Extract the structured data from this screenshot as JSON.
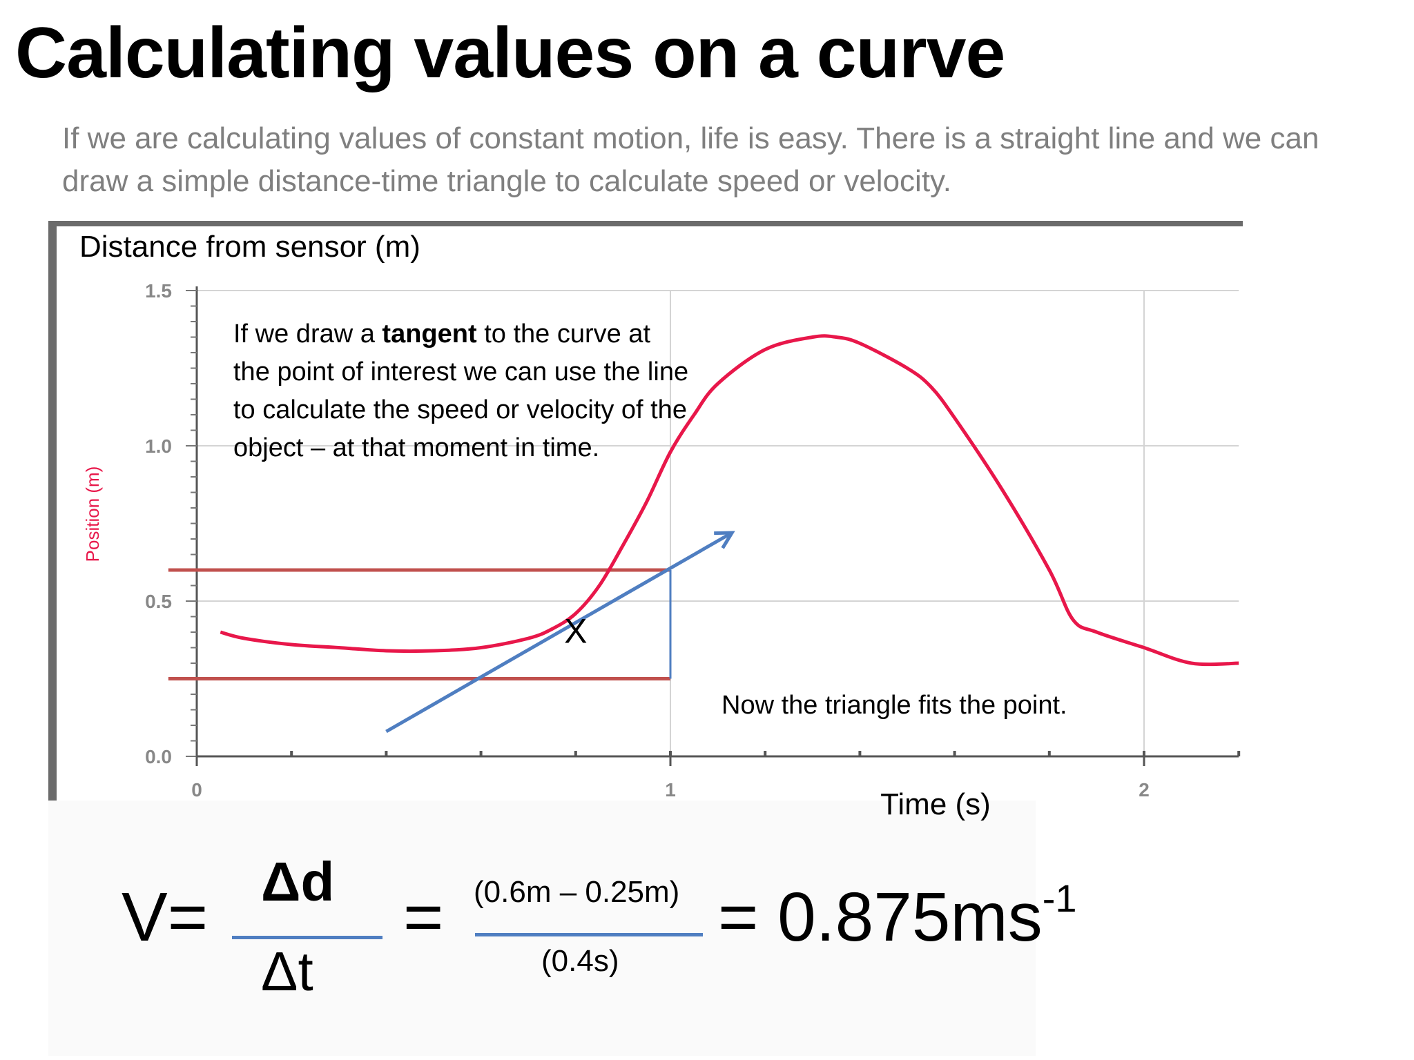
{
  "slide": {
    "title": "Calculating values on a curve",
    "intro": "If we are calculating values of constant motion, life is easy. There is a straight line and we can draw a simple distance-time triangle to calculate speed or velocity."
  },
  "chart_data": {
    "type": "line",
    "ylabel": "Distance from sensor (m)",
    "ylabel_inner": "Position (m)",
    "xlabel": "Time (s)",
    "xlim": [
      0,
      2.2
    ],
    "ylim": [
      0,
      1.5
    ],
    "x_ticks": [
      0,
      1,
      2
    ],
    "y_ticks": [
      0.0,
      0.5,
      1.0,
      1.5
    ],
    "x_tick_labels": [
      "0",
      "1",
      "2"
    ],
    "y_tick_labels": [
      "0.0",
      "0.5",
      "1.0",
      "1.5"
    ],
    "grid": true,
    "series": [
      {
        "color": "#e8174a",
        "x": [
          0.05,
          0.1,
          0.2,
          0.3,
          0.4,
          0.5,
          0.6,
          0.7,
          0.75,
          0.8,
          0.85,
          0.9,
          0.95,
          1.0,
          1.05,
          1.1,
          1.2,
          1.3,
          1.35,
          1.4,
          1.5,
          1.55,
          1.6,
          1.7,
          1.8,
          1.85,
          1.9,
          2.0,
          2.1,
          2.2
        ],
        "y": [
          0.4,
          0.38,
          0.36,
          0.35,
          0.34,
          0.34,
          0.35,
          0.38,
          0.41,
          0.46,
          0.55,
          0.68,
          0.82,
          0.98,
          1.1,
          1.2,
          1.31,
          1.35,
          1.35,
          1.33,
          1.25,
          1.19,
          1.09,
          0.86,
          0.6,
          0.44,
          0.4,
          0.35,
          0.3,
          0.3
        ]
      }
    ],
    "tangent": {
      "x1": 0.4,
      "y1": 0.08,
      "x2": 1.13,
      "y2": 0.72,
      "color": "#4f7ec1"
    },
    "triangle": {
      "x_left": 0.6,
      "x_right": 1.0,
      "y_low": 0.25,
      "y_high": 0.6,
      "line_start_x": -0.06,
      "color": "#c0504d"
    },
    "point_marker": {
      "x": 0.8,
      "y": 0.41,
      "label": "X"
    },
    "annotations": {
      "tangent_note_before": "If we draw a ",
      "tangent_note_bold": "tangent",
      "tangent_note_after_lines": [
        " to the curve at",
        "the point of interest we can use the line",
        "to calculate the speed or velocity of the",
        "object – at that moment in time."
      ],
      "fit_note": "Now the triangle fits the point."
    }
  },
  "formula": {
    "v": "V=",
    "numerator": "Δd",
    "denominator": "Δt",
    "equals": "=",
    "values_numerator": "(0.6m – 0.25m)",
    "values_denominator": "(0.4s)",
    "result": "= 0.875ms",
    "result_exp": "-1"
  }
}
